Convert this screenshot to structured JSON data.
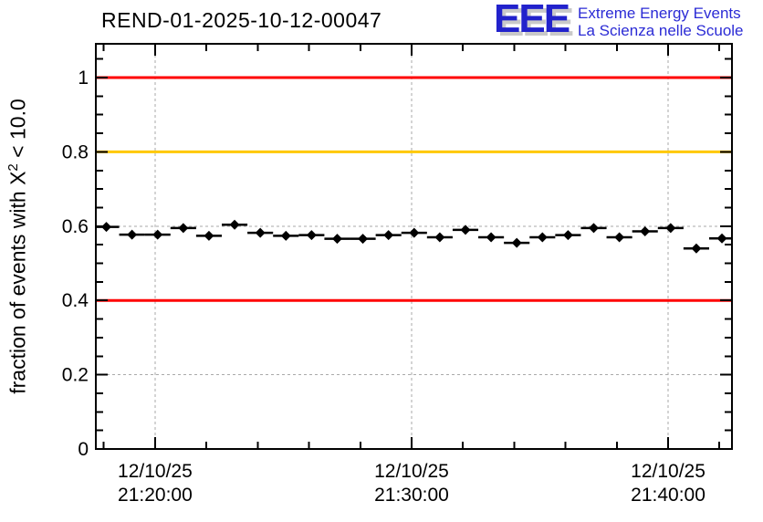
{
  "header": {
    "title": "REND-01-2025-10-12-00047"
  },
  "logo": {
    "acronym": "EEE",
    "line1": "Extreme Energy Events",
    "line2": "La Scienza nelle Scuole",
    "color": "#2222cc",
    "shadow_color": "#c9c9c9"
  },
  "chart_data": {
    "type": "scatter",
    "title": "REND-01-2025-10-12-00047",
    "xlabel": "",
    "ylabel": "fraction of events with X² < 10.0",
    "ylabel_parts": {
      "prefix": "fraction of events with X",
      "sup": "2",
      "suffix": " < 10.0"
    },
    "grid": "dashed-gray-at-major-ticks",
    "grid_color": "#aaaaaa",
    "frame_color": "#000000",
    "ylim": [
      0,
      1.091
    ],
    "y_axis": {
      "major_ticks": [
        {
          "value": 0,
          "label": "0"
        },
        {
          "value": 0.2,
          "label": "0.2"
        },
        {
          "value": 0.4,
          "label": "0.4"
        },
        {
          "value": 0.6,
          "label": "0.6"
        },
        {
          "value": 0.8,
          "label": "0.8"
        },
        {
          "value": 1,
          "label": "1"
        }
      ],
      "minor_step": 0.05
    },
    "x_axis": {
      "unit": "minutes after 21:00 on 12/10/25",
      "range_minutes": [
        77.69,
        102.49
      ],
      "major_ticks": [
        {
          "minutes": 80,
          "label_date": "12/10/25",
          "label_time": "21:20:00"
        },
        {
          "minutes": 90,
          "label_date": "12/10/25",
          "label_time": "21:30:00"
        },
        {
          "minutes": 100,
          "label_date": "12/10/25",
          "label_time": "21:40:00"
        }
      ],
      "minor_step_minutes": 2
    },
    "threshold_lines": [
      {
        "value": 1.0,
        "color": "#ff0000"
      },
      {
        "value": 0.8,
        "color": "#ffc800"
      },
      {
        "value": 0.4,
        "color": "#ff0000"
      }
    ],
    "series": [
      {
        "name": "fraction-of-events-chi2-lt-10",
        "marker": "diamond",
        "color": "#000000",
        "xerr_minutes": 0.5,
        "yerr": 0.01,
        "x_minutes": [
          78.1,
          79.1,
          80.1,
          81.1,
          82.1,
          83.1,
          84.1,
          85.1,
          86.1,
          87.1,
          88.1,
          89.1,
          90.1,
          91.1,
          92.1,
          93.1,
          94.1,
          95.1,
          96.1,
          97.1,
          98.1,
          99.1,
          100.1,
          101.1,
          102.1
        ],
        "y": [
          0.598,
          0.577,
          0.577,
          0.595,
          0.574,
          0.604,
          0.582,
          0.574,
          0.576,
          0.566,
          0.566,
          0.576,
          0.582,
          0.57,
          0.59,
          0.57,
          0.555,
          0.57,
          0.576,
          0.595,
          0.57,
          0.586,
          0.595,
          0.54,
          0.567
        ]
      }
    ]
  }
}
